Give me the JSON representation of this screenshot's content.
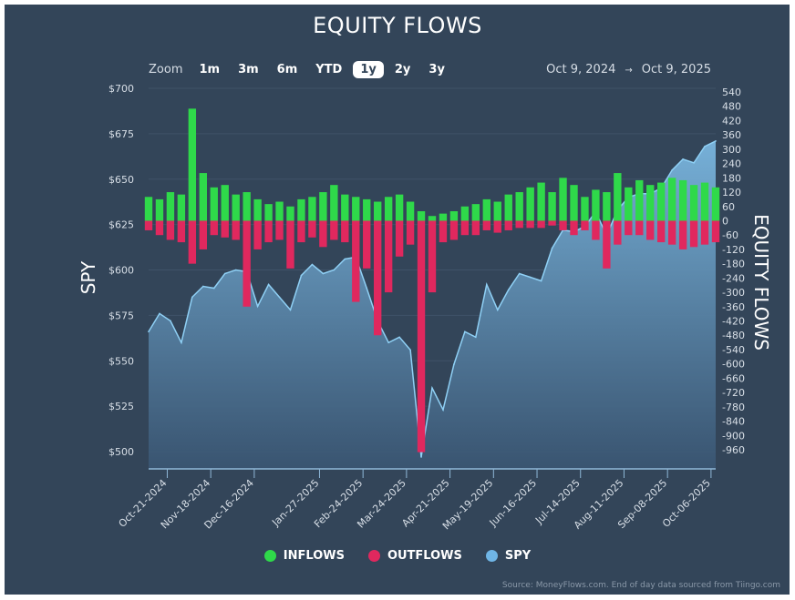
{
  "chart_data": {
    "type": "bar+area",
    "title": "EQUITY FLOWS",
    "ylabel_left": "SPY",
    "ylabel_right": "EQUITY FLOWS",
    "ylim_left": [
      490,
      700
    ],
    "ylim_right": [
      -1040,
      540
    ],
    "left_ticks": [
      "$700",
      "$675",
      "$650",
      "$625",
      "$600",
      "$575",
      "$550",
      "$525",
      "$500"
    ],
    "right_ticks": [
      "540",
      "480",
      "420",
      "360",
      "300",
      "240",
      "180",
      "120",
      "60",
      "0",
      "-60",
      "-120",
      "-180",
      "-240",
      "-300",
      "-360",
      "-420",
      "-480",
      "-540",
      "-600",
      "-660",
      "-720",
      "-780",
      "-840",
      "-900",
      "-960"
    ],
    "x_ticks": [
      "Oct-21-2024",
      "Nov-18-2024",
      "Dec-16-2024",
      "Jan-27-2025",
      "Feb-24-2025",
      "Mar-24-2025",
      "Apr-21-2025",
      "May-19-2025",
      "Jun-16-2025",
      "Jul-14-2025",
      "Aug-11-2025",
      "Sep-08-2025",
      "Oct-06-2025"
    ],
    "x_range": [
      "2024-10-09",
      "2025-10-09"
    ],
    "grid": true,
    "legend_position": "bottom",
    "series": [
      {
        "name": "INFLOWS",
        "color": "#2fd94a",
        "values": [
          100,
          90,
          120,
          110,
          470,
          200,
          140,
          150,
          110,
          120,
          90,
          70,
          80,
          60,
          90,
          100,
          120,
          150,
          110,
          100,
          90,
          80,
          100,
          110,
          80,
          40,
          20,
          30,
          40,
          60,
          70,
          90,
          80,
          110,
          120,
          140,
          160,
          120,
          180,
          150,
          100,
          130,
          120,
          200,
          140,
          170,
          150,
          160,
          180,
          170,
          150,
          160,
          140
        ]
      },
      {
        "name": "OUTFLOWS",
        "color": "#e0285e",
        "values": [
          -40,
          -60,
          -80,
          -90,
          -180,
          -120,
          -60,
          -70,
          -80,
          -360,
          -120,
          -90,
          -80,
          -200,
          -90,
          -70,
          -110,
          -80,
          -90,
          -340,
          -200,
          -480,
          -300,
          -150,
          -100,
          -970,
          -300,
          -90,
          -80,
          -60,
          -60,
          -40,
          -50,
          -40,
          -30,
          -30,
          -30,
          -20,
          -40,
          -60,
          -40,
          -80,
          -200,
          -100,
          -60,
          -60,
          -80,
          -90,
          -100,
          -120,
          -110,
          -100,
          -90
        ]
      },
      {
        "name": "SPY",
        "color": "#6fb5e6",
        "values": [
          566,
          576,
          572,
          560,
          585,
          591,
          590,
          598,
          600,
          599,
          580,
          592,
          585,
          578,
          597,
          603,
          598,
          600,
          606,
          607,
          590,
          572,
          560,
          563,
          556,
          497,
          535,
          523,
          548,
          566,
          563,
          592,
          578,
          589,
          598,
          596,
          594,
          612,
          622,
          621,
          624,
          632,
          619,
          633,
          640,
          642,
          642,
          645,
          655,
          661,
          659,
          668,
          671
        ]
      }
    ]
  },
  "zoom": {
    "label": "Zoom",
    "options": [
      "1m",
      "3m",
      "6m",
      "YTD",
      "1y",
      "2y",
      "3y"
    ],
    "selected": "1y"
  },
  "range": {
    "from": "Oct 9, 2024",
    "arrow": "→",
    "to": "Oct 9, 2025"
  },
  "source": "Source: MoneyFlows.com. End of day data sourced from Tiingo.com"
}
